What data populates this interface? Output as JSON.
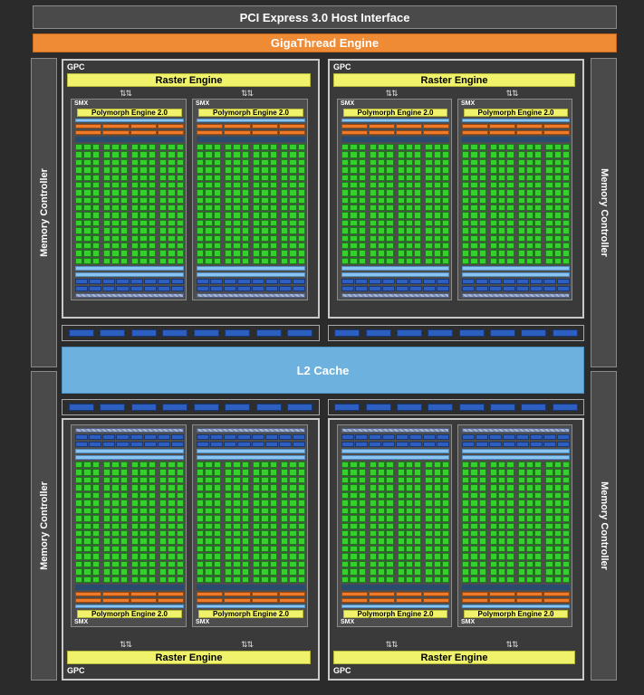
{
  "host_interface": "PCI Express 3.0 Host Interface",
  "gigathread": "GigaThread Engine",
  "memory_controller_label": "Memory Controller",
  "gpc_label": "GPC",
  "raster_engine_label": "Raster Engine",
  "smx_label": "SMX",
  "polymorph_label": "Polymorph Engine 2.0",
  "l2_cache_label": "L2 Cache",
  "colors": {
    "cuda_core": "#34d12d",
    "load_store_unit": "#2c5fbf",
    "cache_bar": "#8bc3f1",
    "warp_scheduler": "#ee7a2a",
    "raster_engine": "#f0f26c",
    "gigathread": "#ef8b35",
    "l2_cache": "#6db1df"
  }
}
